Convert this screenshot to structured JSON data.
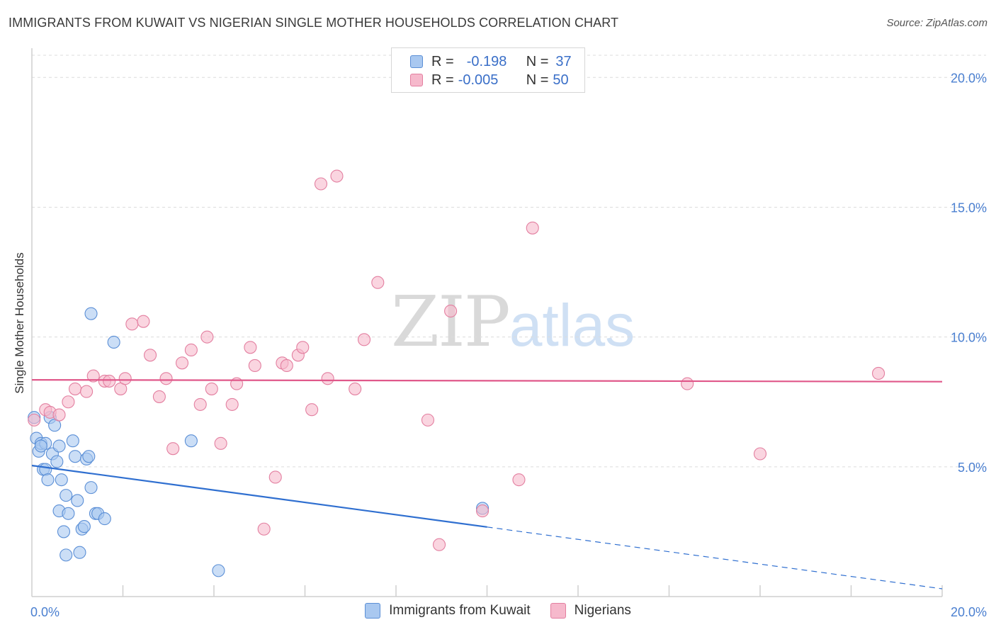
{
  "title": "IMMIGRANTS FROM KUWAIT VS NIGERIAN SINGLE MOTHER HOUSEHOLDS CORRELATION CHART",
  "source": "Source: ZipAtlas.com",
  "watermark": {
    "zip": "ZIP",
    "atlas": "atlas"
  },
  "legend": {
    "rows": [
      {
        "r_label": "R =",
        "r_value": "-0.198",
        "n_label": "N =",
        "n_value": "37",
        "color": "#a9c8f0",
        "border": "#5b8fd6"
      },
      {
        "r_label": "R =",
        "r_value": "-0.005",
        "n_label": "N =",
        "n_value": "50",
        "color": "#f6b9cc",
        "border": "#e37fa0"
      }
    ]
  },
  "chart_data": {
    "type": "scatter",
    "title": "IMMIGRANTS FROM KUWAIT VS NIGERIAN SINGLE MOTHER HOUSEHOLDS CORRELATION CHART",
    "xlabel": "",
    "ylabel": "Single Mother Households",
    "xlim": [
      0,
      20
    ],
    "ylim": [
      0,
      20.8
    ],
    "y_ticks": [
      5,
      10,
      15,
      20
    ],
    "y_tick_labels": [
      "5.0%",
      "10.0%",
      "15.0%",
      "20.0%"
    ],
    "x_tick_labels": [
      "0.0%",
      "20.0%"
    ],
    "x_tick_positions": [
      0,
      20
    ],
    "x_minor_ticks": [
      2,
      4,
      6,
      8,
      10,
      12,
      14,
      16,
      18,
      20
    ],
    "grid": true,
    "legend_placement": "bottom-center",
    "series": [
      {
        "name": "Immigrants from Kuwait",
        "color": "#a9c8f0",
        "stroke": "#5b8fd6",
        "line_color": "#2f6fd0",
        "trend": {
          "x0": 0,
          "y0": 5.05,
          "x1": 10,
          "y1": 2.68,
          "dash_to": 20,
          "dash_y": 0.3
        },
        "points": [
          [
            0.05,
            6.9
          ],
          [
            0.1,
            6.1
          ],
          [
            0.15,
            5.6
          ],
          [
            0.2,
            5.9
          ],
          [
            0.25,
            4.9
          ],
          [
            0.3,
            4.9
          ],
          [
            0.35,
            4.5
          ],
          [
            0.4,
            6.9
          ],
          [
            0.45,
            5.5
          ],
          [
            0.5,
            6.6
          ],
          [
            0.55,
            5.2
          ],
          [
            0.6,
            5.8
          ],
          [
            0.6,
            3.3
          ],
          [
            0.65,
            4.5
          ],
          [
            0.7,
            2.5
          ],
          [
            0.75,
            1.6
          ],
          [
            0.75,
            3.9
          ],
          [
            0.8,
            3.2
          ],
          [
            0.9,
            6.0
          ],
          [
            0.95,
            5.4
          ],
          [
            1.0,
            3.7
          ],
          [
            1.05,
            1.7
          ],
          [
            1.1,
            2.6
          ],
          [
            1.15,
            2.7
          ],
          [
            1.2,
            5.3
          ],
          [
            1.25,
            5.4
          ],
          [
            1.3,
            4.2
          ],
          [
            1.4,
            3.2
          ],
          [
            1.45,
            3.2
          ],
          [
            1.6,
            3.0
          ],
          [
            1.3,
            10.9
          ],
          [
            1.8,
            9.8
          ],
          [
            3.5,
            6.0
          ],
          [
            4.1,
            1.0
          ],
          [
            9.9,
            3.4
          ],
          [
            0.3,
            5.9
          ],
          [
            0.2,
            5.8
          ]
        ]
      },
      {
        "name": "Nigerians",
        "color": "#f6b9cc",
        "stroke": "#e37fa0",
        "line_color": "#e0588a",
        "trend": {
          "x0": 0,
          "y0": 8.35,
          "x1": 20,
          "y1": 8.28
        },
        "points": [
          [
            0.05,
            6.8
          ],
          [
            0.3,
            7.2
          ],
          [
            0.4,
            7.1
          ],
          [
            0.6,
            7.0
          ],
          [
            0.8,
            7.5
          ],
          [
            0.95,
            8.0
          ],
          [
            1.2,
            7.9
          ],
          [
            1.35,
            8.5
          ],
          [
            1.6,
            8.3
          ],
          [
            1.7,
            8.3
          ],
          [
            1.95,
            8.0
          ],
          [
            2.05,
            8.4
          ],
          [
            2.2,
            10.5
          ],
          [
            2.45,
            10.6
          ],
          [
            2.6,
            9.3
          ],
          [
            2.8,
            7.7
          ],
          [
            2.95,
            8.4
          ],
          [
            3.1,
            5.7
          ],
          [
            3.3,
            9.0
          ],
          [
            3.5,
            9.5
          ],
          [
            3.7,
            7.4
          ],
          [
            3.85,
            10.0
          ],
          [
            3.95,
            8.0
          ],
          [
            4.15,
            5.9
          ],
          [
            4.4,
            7.4
          ],
          [
            4.5,
            8.2
          ],
          [
            4.8,
            9.6
          ],
          [
            4.9,
            8.9
          ],
          [
            5.1,
            2.6
          ],
          [
            5.35,
            4.6
          ],
          [
            5.5,
            9.0
          ],
          [
            5.6,
            8.9
          ],
          [
            5.85,
            9.3
          ],
          [
            5.95,
            9.6
          ],
          [
            6.15,
            7.2
          ],
          [
            6.35,
            15.9
          ],
          [
            6.5,
            8.4
          ],
          [
            6.7,
            16.2
          ],
          [
            7.1,
            8.0
          ],
          [
            7.3,
            9.9
          ],
          [
            7.6,
            12.1
          ],
          [
            8.7,
            6.8
          ],
          [
            8.95,
            2.0
          ],
          [
            9.2,
            11.0
          ],
          [
            9.9,
            3.3
          ],
          [
            10.7,
            4.5
          ],
          [
            11.0,
            14.2
          ],
          [
            14.4,
            8.2
          ],
          [
            16.0,
            5.5
          ],
          [
            18.6,
            8.6
          ]
        ]
      }
    ]
  }
}
